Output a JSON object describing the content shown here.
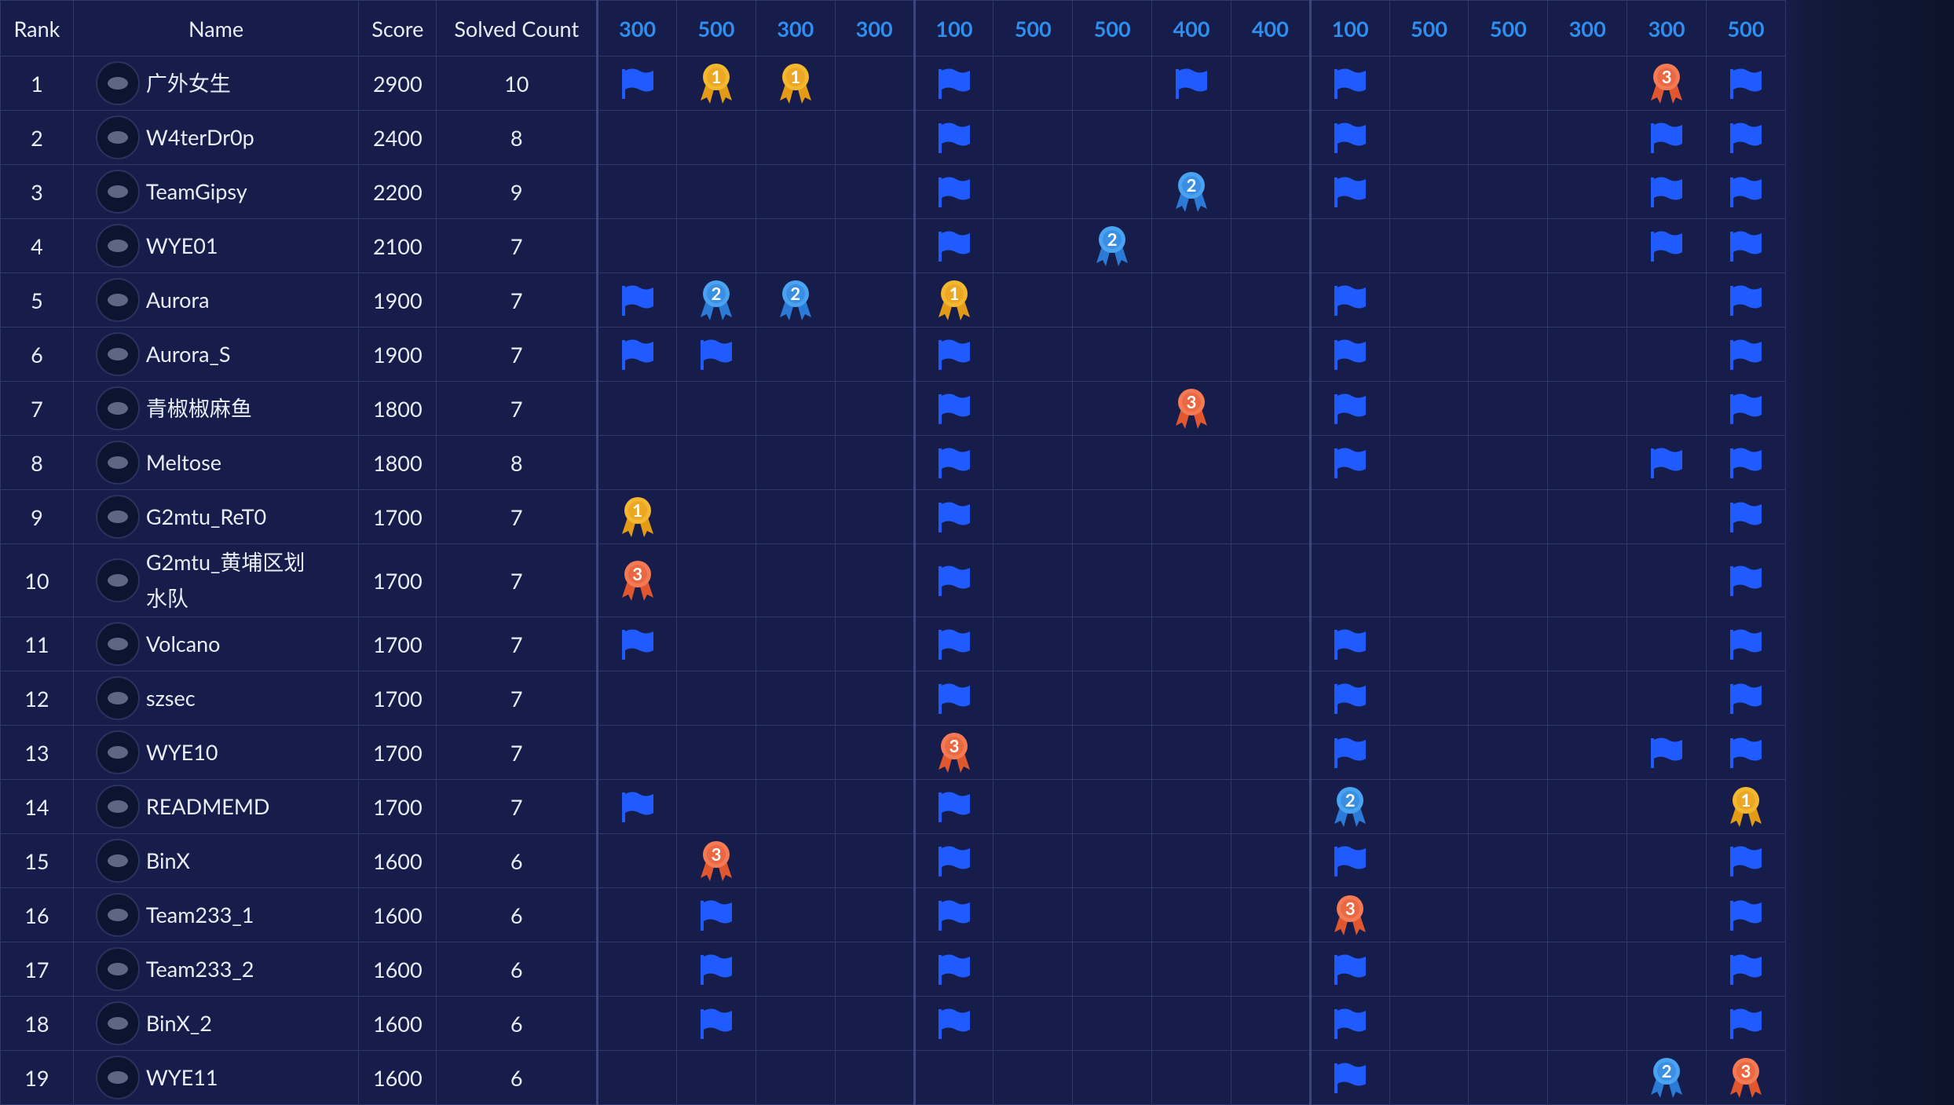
{
  "table": {
    "headers": [
      "Rank",
      "Name",
      "Score",
      "Solved Count"
    ],
    "challenges": [
      300,
      500,
      300,
      300,
      100,
      500,
      500,
      400,
      400,
      100,
      500,
      500,
      300,
      300,
      500
    ],
    "rows": [
      {
        "rank": 1,
        "name": "广外女生",
        "score": 2900,
        "solved": 10,
        "cells": [
          true,
          1,
          1,
          null,
          true,
          null,
          null,
          true,
          null,
          true,
          null,
          null,
          null,
          3,
          true
        ]
      },
      {
        "rank": 2,
        "name": "W4terDr0p",
        "score": 2400,
        "solved": 8,
        "cells": [
          null,
          null,
          null,
          null,
          true,
          null,
          null,
          null,
          null,
          true,
          null,
          null,
          null,
          true,
          true
        ]
      },
      {
        "rank": 3,
        "name": "TeamGipsy",
        "score": 2200,
        "solved": 9,
        "cells": [
          null,
          null,
          null,
          null,
          true,
          null,
          null,
          2,
          null,
          true,
          null,
          null,
          null,
          true,
          true
        ]
      },
      {
        "rank": 4,
        "name": "WYE01",
        "score": 2100,
        "solved": 7,
        "cells": [
          null,
          null,
          null,
          null,
          true,
          null,
          2,
          null,
          null,
          null,
          null,
          null,
          null,
          true,
          true
        ]
      },
      {
        "rank": 5,
        "name": "Aurora",
        "score": 1900,
        "solved": 7,
        "cells": [
          true,
          2,
          2,
          null,
          1,
          null,
          null,
          null,
          null,
          true,
          null,
          null,
          null,
          null,
          true
        ]
      },
      {
        "rank": 6,
        "name": "Aurora_S",
        "score": 1900,
        "solved": 7,
        "cells": [
          true,
          true,
          null,
          null,
          true,
          null,
          null,
          null,
          null,
          true,
          null,
          null,
          null,
          null,
          true
        ]
      },
      {
        "rank": 7,
        "name": "青椒椒麻鱼",
        "score": 1800,
        "solved": 7,
        "cells": [
          null,
          null,
          null,
          null,
          true,
          null,
          null,
          3,
          null,
          true,
          null,
          null,
          null,
          null,
          true
        ]
      },
      {
        "rank": 8,
        "name": "Meltose",
        "score": 1800,
        "solved": 8,
        "cells": [
          null,
          null,
          null,
          null,
          true,
          null,
          null,
          null,
          null,
          true,
          null,
          null,
          null,
          true,
          true
        ]
      },
      {
        "rank": 9,
        "name": "G2mtu_ReT0",
        "score": 1700,
        "solved": 7,
        "cells": [
          1,
          null,
          null,
          null,
          true,
          null,
          null,
          null,
          null,
          null,
          null,
          null,
          null,
          null,
          true
        ]
      },
      {
        "rank": 10,
        "name": "G2mtu_黄埔区划水队",
        "score": 1700,
        "solved": 7,
        "cells": [
          3,
          null,
          null,
          null,
          true,
          null,
          null,
          null,
          null,
          null,
          null,
          null,
          null,
          null,
          true
        ]
      },
      {
        "rank": 11,
        "name": "Volcano",
        "score": 1700,
        "solved": 7,
        "cells": [
          true,
          null,
          null,
          null,
          true,
          null,
          null,
          null,
          null,
          true,
          null,
          null,
          null,
          null,
          true
        ]
      },
      {
        "rank": 12,
        "name": "szsec",
        "score": 1700,
        "solved": 7,
        "cells": [
          null,
          null,
          null,
          null,
          true,
          null,
          null,
          null,
          null,
          true,
          null,
          null,
          null,
          null,
          true
        ]
      },
      {
        "rank": 13,
        "name": "WYE10",
        "score": 1700,
        "solved": 7,
        "cells": [
          null,
          null,
          null,
          null,
          3,
          null,
          null,
          null,
          null,
          true,
          null,
          null,
          null,
          true,
          true
        ]
      },
      {
        "rank": 14,
        "name": "READMEMD",
        "score": 1700,
        "solved": 7,
        "cells": [
          true,
          null,
          null,
          null,
          true,
          null,
          null,
          null,
          null,
          2,
          null,
          null,
          null,
          null,
          1
        ]
      },
      {
        "rank": 15,
        "name": "BinX",
        "score": 1600,
        "solved": 6,
        "cells": [
          null,
          3,
          null,
          null,
          true,
          null,
          null,
          null,
          null,
          true,
          null,
          null,
          null,
          null,
          true
        ]
      },
      {
        "rank": 16,
        "name": "Team233_1",
        "score": 1600,
        "solved": 6,
        "cells": [
          null,
          true,
          null,
          null,
          true,
          null,
          null,
          null,
          null,
          3,
          null,
          null,
          null,
          null,
          true
        ]
      },
      {
        "rank": 17,
        "name": "Team233_2",
        "score": 1600,
        "solved": 6,
        "cells": [
          null,
          true,
          null,
          null,
          true,
          null,
          null,
          null,
          null,
          true,
          null,
          null,
          null,
          null,
          true
        ]
      },
      {
        "rank": 18,
        "name": "BinX_2",
        "score": 1600,
        "solved": 6,
        "cells": [
          null,
          true,
          null,
          null,
          true,
          null,
          null,
          null,
          null,
          true,
          null,
          null,
          null,
          null,
          true
        ]
      },
      {
        "rank": 19,
        "name": "WYE11",
        "score": 1600,
        "solved": 6,
        "cells": [
          null,
          null,
          null,
          null,
          null,
          null,
          null,
          null,
          null,
          true,
          null,
          null,
          null,
          2,
          3
        ]
      }
    ]
  }
}
